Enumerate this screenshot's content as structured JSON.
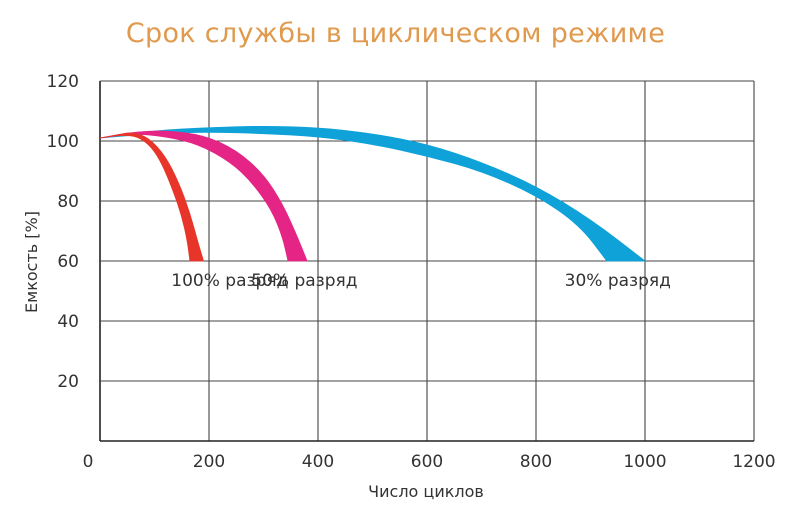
{
  "chart_data": {
    "type": "area",
    "title": "Срок службы в циклическом режиме",
    "xlabel": "Число циклов",
    "ylabel": "Емкость [%]",
    "xlim": [
      0,
      1200
    ],
    "ylim": [
      0,
      120
    ],
    "x_ticks": [
      0,
      200,
      400,
      600,
      800,
      1000,
      1200
    ],
    "y_ticks": [
      20,
      40,
      60,
      80,
      100,
      120
    ],
    "grid": true,
    "series": [
      {
        "name": "100% разряд",
        "color": "#e8352a",
        "upper": [
          [
            0,
            101
          ],
          [
            30,
            102
          ],
          [
            60,
            103
          ],
          [
            90,
            101
          ],
          [
            120,
            95
          ],
          [
            145,
            86
          ],
          [
            165,
            76
          ],
          [
            180,
            66
          ],
          [
            190,
            60
          ]
        ],
        "lower": [
          [
            0,
            101
          ],
          [
            40,
            102
          ],
          [
            70,
            101.5
          ],
          [
            95,
            98
          ],
          [
            115,
            92
          ],
          [
            135,
            83
          ],
          [
            150,
            75
          ],
          [
            160,
            67
          ],
          [
            165,
            60
          ]
        ]
      },
      {
        "name": "50% разряд",
        "color": "#e52585",
        "upper": [
          [
            0,
            101
          ],
          [
            60,
            103
          ],
          [
            120,
            103.5
          ],
          [
            190,
            102
          ],
          [
            250,
            97
          ],
          [
            300,
            89
          ],
          [
            335,
            79
          ],
          [
            360,
            69
          ],
          [
            380,
            60
          ]
        ],
        "lower": [
          [
            0,
            101
          ],
          [
            60,
            102.5
          ],
          [
            120,
            101.5
          ],
          [
            180,
            99
          ],
          [
            240,
            93
          ],
          [
            280,
            86
          ],
          [
            315,
            77
          ],
          [
            335,
            68
          ],
          [
            345,
            60
          ]
        ]
      },
      {
        "name": "30% разряд",
        "color": "#0fa2d8",
        "upper": [
          [
            0,
            101
          ],
          [
            100,
            103.5
          ],
          [
            200,
            104.5
          ],
          [
            300,
            105
          ],
          [
            400,
            104.5
          ],
          [
            500,
            102.5
          ],
          [
            600,
            99
          ],
          [
            700,
            93
          ],
          [
            800,
            85
          ],
          [
            900,
            74
          ],
          [
            1000,
            60
          ]
        ],
        "lower": [
          [
            0,
            101
          ],
          [
            100,
            102.5
          ],
          [
            200,
            103
          ],
          [
            300,
            102.5
          ],
          [
            400,
            101.5
          ],
          [
            500,
            99
          ],
          [
            600,
            95
          ],
          [
            700,
            90
          ],
          [
            800,
            82
          ],
          [
            880,
            72
          ],
          [
            930,
            60
          ]
        ]
      }
    ],
    "annotations": [
      {
        "text": "100% разряд",
        "x": 140,
        "y": 60
      },
      {
        "text": "50% разряд",
        "x": 375,
        "y": 60
      },
      {
        "text": "30% разряд",
        "x": 950,
        "y": 60
      }
    ]
  }
}
